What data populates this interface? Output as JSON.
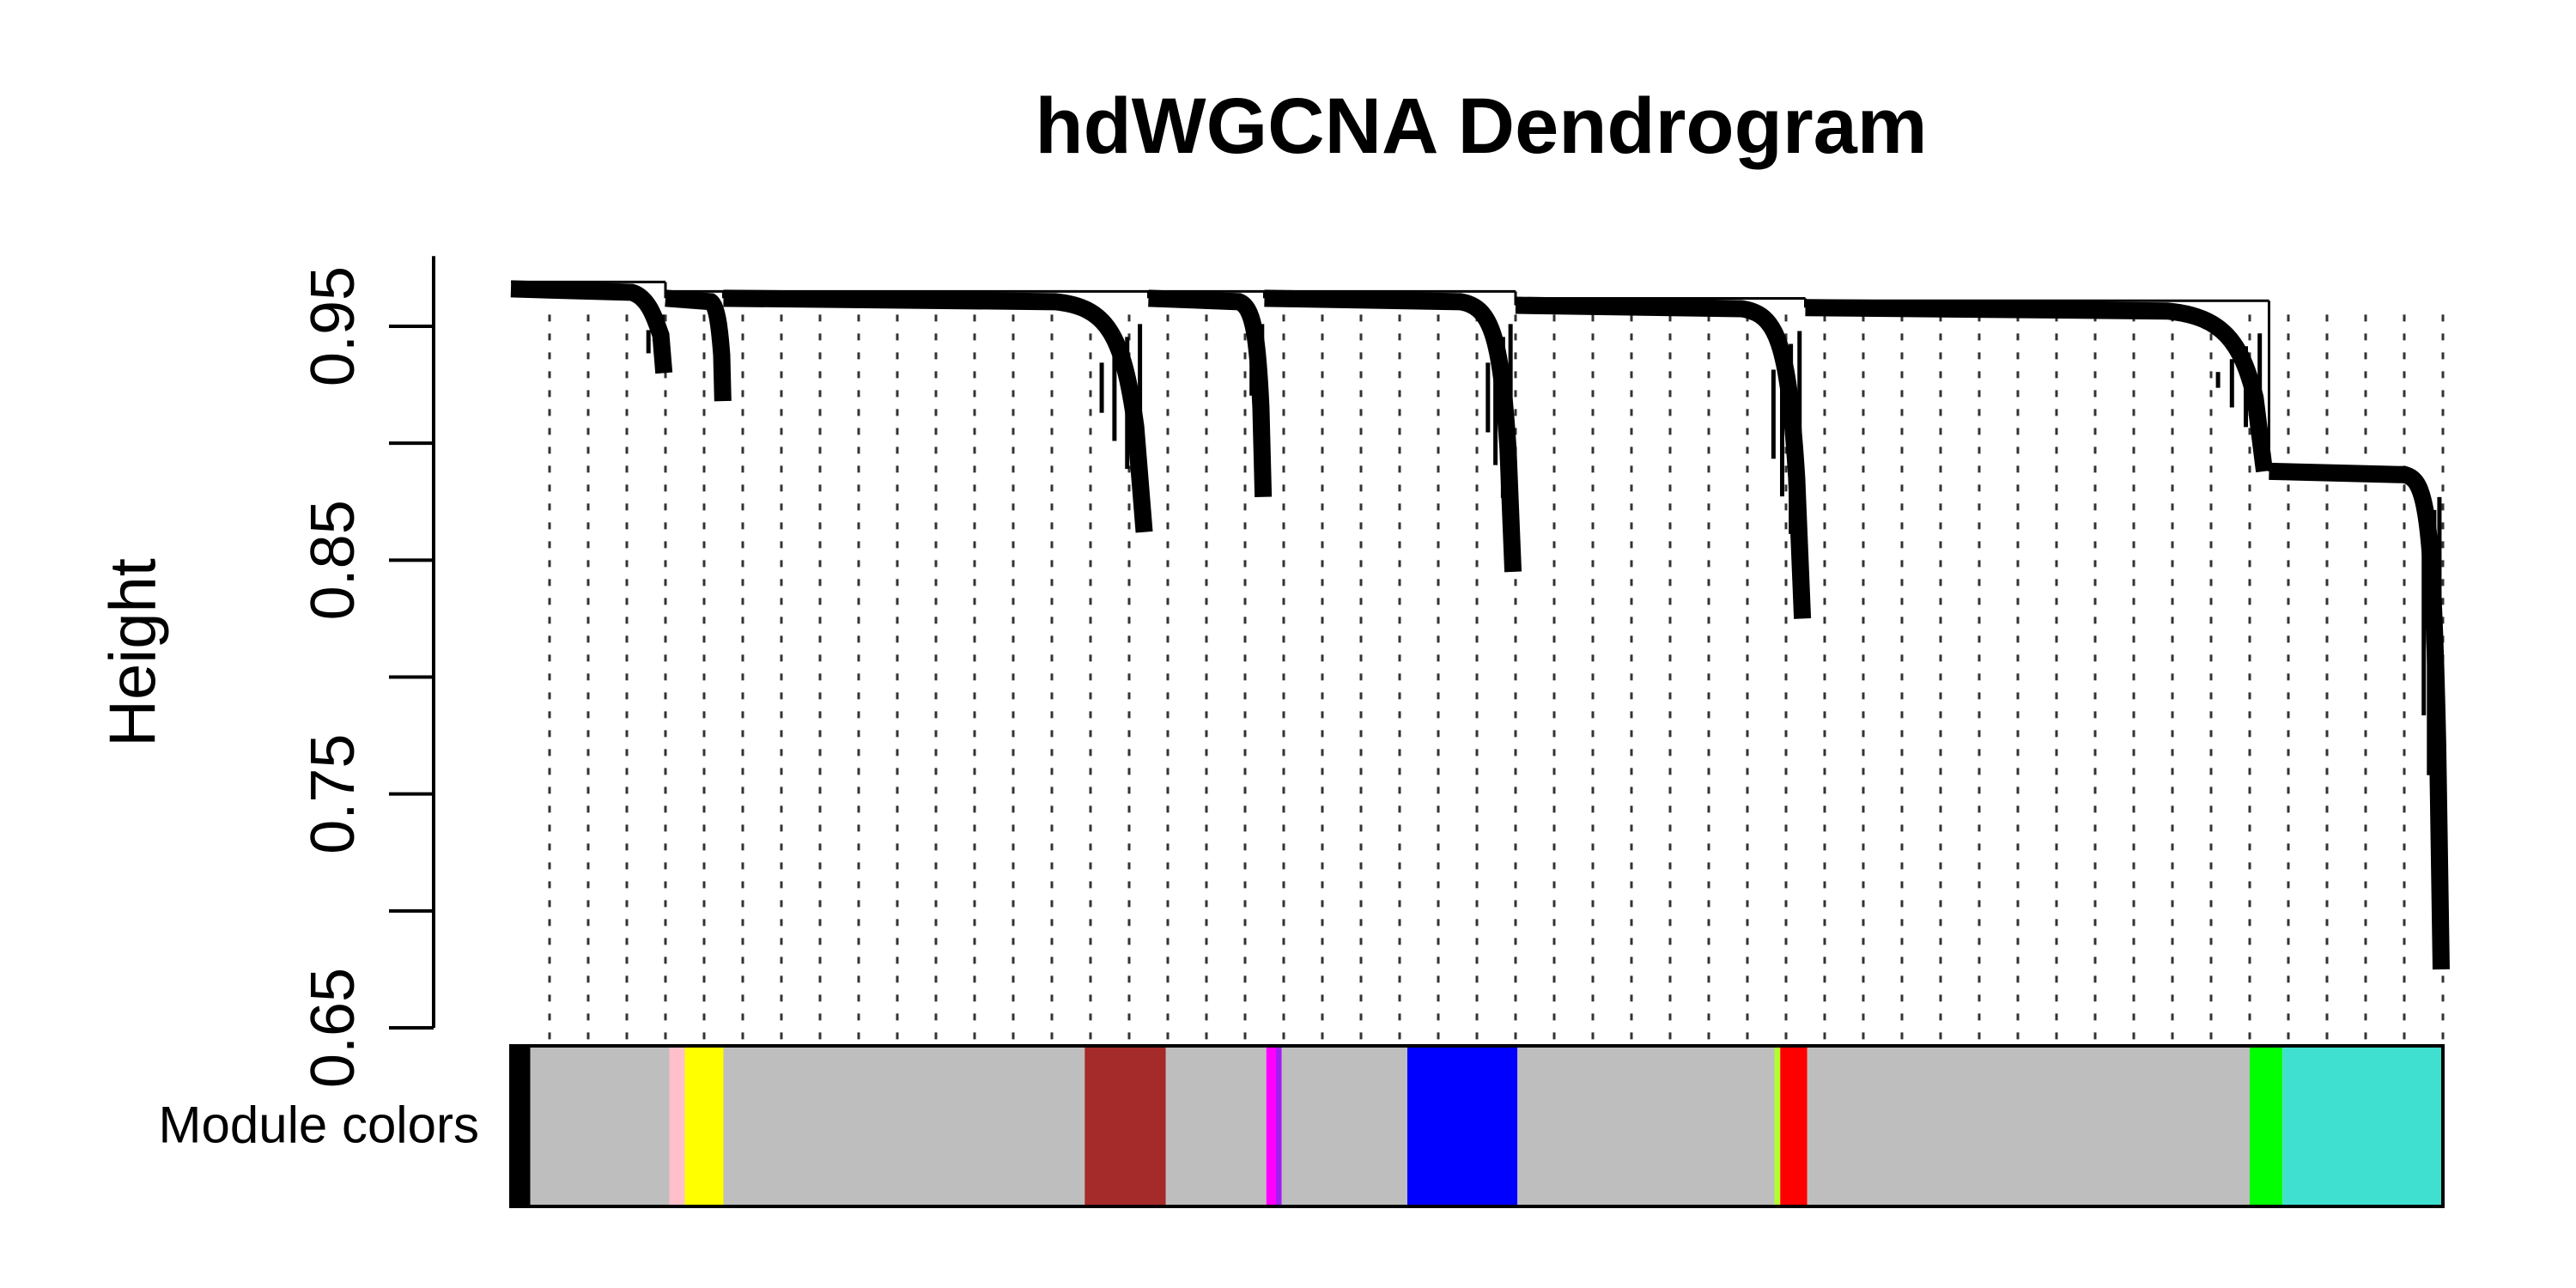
{
  "chart_data": {
    "type": "dendrogram",
    "title": "hdWGCNA Dendrogram",
    "ylabel": "Height",
    "ylim": [
      0.65,
      0.98
    ],
    "yticks": [
      0.65,
      0.7,
      0.75,
      0.8,
      0.85,
      0.9,
      0.95
    ],
    "ytick_labels": [
      "0.65",
      "",
      "0.75",
      "",
      "0.85",
      "",
      "0.95"
    ],
    "color_row_label": "Module colors",
    "clusters": [
      {
        "start": 0.0,
        "end": 0.08,
        "merge_height": 0.966,
        "tip_height": 0.93
      },
      {
        "start": 0.08,
        "end": 0.11,
        "merge_height": 0.962,
        "tip_height": 0.918
      },
      {
        "start": 0.11,
        "end": 0.33,
        "merge_height": 0.962,
        "tip_height": 0.862
      },
      {
        "start": 0.33,
        "end": 0.39,
        "merge_height": 0.962,
        "tip_height": 0.877
      },
      {
        "start": 0.39,
        "end": 0.52,
        "merge_height": 0.962,
        "tip_height": 0.845
      },
      {
        "start": 0.52,
        "end": 0.67,
        "merge_height": 0.959,
        "tip_height": 0.825
      },
      {
        "start": 0.67,
        "end": 0.91,
        "merge_height": 0.958,
        "tip_height": 0.888
      },
      {
        "start": 0.91,
        "end": 1.0,
        "merge_height": 0.888,
        "tip_height": 0.675
      }
    ],
    "module_colors": [
      {
        "color": "#000000",
        "start": 0.0,
        "end": 0.01
      },
      {
        "color": "#BEBEBE",
        "start": 0.01,
        "end": 0.082
      },
      {
        "color": "#FFC0CB",
        "start": 0.082,
        "end": 0.09
      },
      {
        "color": "#FFFF00",
        "start": 0.09,
        "end": 0.11
      },
      {
        "color": "#BEBEBE",
        "start": 0.11,
        "end": 0.297
      },
      {
        "color": "#A52A2A",
        "start": 0.297,
        "end": 0.339
      },
      {
        "color": "#BEBEBE",
        "start": 0.339,
        "end": 0.391
      },
      {
        "color": "#FF00FF",
        "start": 0.391,
        "end": 0.396
      },
      {
        "color": "#A020F0",
        "start": 0.396,
        "end": 0.399
      },
      {
        "color": "#BEBEBE",
        "start": 0.399,
        "end": 0.464
      },
      {
        "color": "#0000FF",
        "start": 0.464,
        "end": 0.521
      },
      {
        "color": "#BEBEBE",
        "start": 0.521,
        "end": 0.654
      },
      {
        "color": "#ADFF2F",
        "start": 0.654,
        "end": 0.657
      },
      {
        "color": "#FF0000",
        "start": 0.657,
        "end": 0.671
      },
      {
        "color": "#BEBEBE",
        "start": 0.671,
        "end": 0.9
      },
      {
        "color": "#00FF00",
        "start": 0.9,
        "end": 0.917
      },
      {
        "color": "#40E0D0",
        "start": 0.917,
        "end": 1.0
      }
    ]
  }
}
